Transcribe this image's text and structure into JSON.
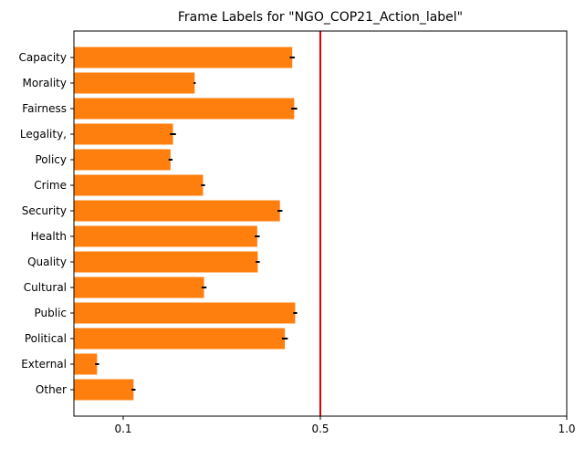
{
  "chart_data": {
    "type": "bar",
    "orientation": "horizontal",
    "title": "Frame Labels for \"NGO_COP21_Action_label\"",
    "xlabel": "",
    "ylabel": "",
    "categories": [
      "Capacity",
      "Morality",
      "Fairness",
      "Legality,",
      "Policy",
      "Crime",
      "Security",
      "Health",
      "Quality",
      "Cultural",
      "Public",
      "Political",
      "External",
      "Other"
    ],
    "values": [
      0.443,
      0.245,
      0.447,
      0.201,
      0.196,
      0.262,
      0.418,
      0.372,
      0.373,
      0.264,
      0.449,
      0.428,
      0.047,
      0.121
    ],
    "errors": [
      0.005,
      0.002,
      0.006,
      0.006,
      0.004,
      0.004,
      0.005,
      0.005,
      0.004,
      0.005,
      0.004,
      0.006,
      0.004,
      0.004
    ],
    "xlim": [
      0.0,
      1.0
    ],
    "xticks": [
      {
        "value": 0.1,
        "label": "0.1"
      },
      {
        "value": 0.5,
        "label": "0.5"
      },
      {
        "value": 1.0,
        "label": "1.0"
      }
    ],
    "reference_line": 0.5,
    "grid": false,
    "colors": {
      "bar": "#ff7f0e",
      "error_bar": "#000000",
      "reference_line": "#e00000",
      "axes": "#000000"
    }
  }
}
